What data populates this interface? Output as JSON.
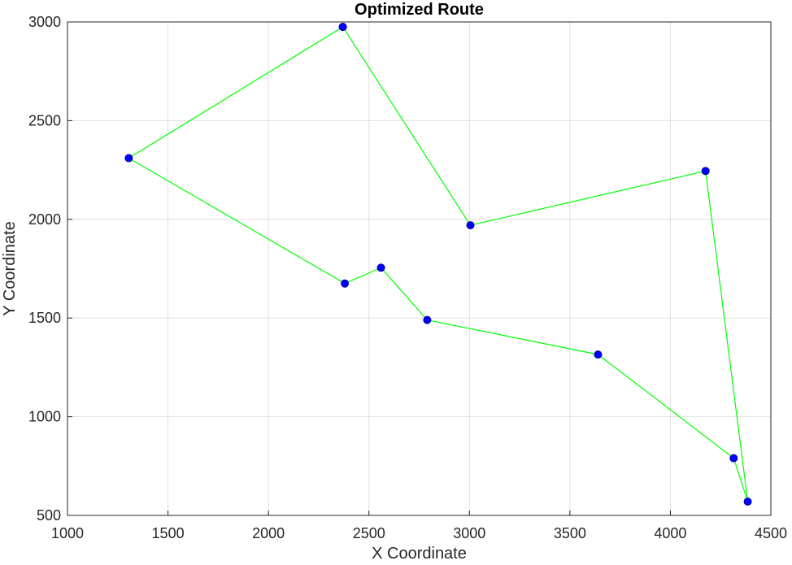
{
  "chart_data": {
    "type": "line",
    "title": "Optimized Route",
    "xlabel": "X Coordinate",
    "ylabel": "Y Coordinate",
    "xlim": [
      1000,
      4500
    ],
    "ylim": [
      500,
      3000
    ],
    "xticks": [
      1000,
      1500,
      2000,
      2500,
      3000,
      3500,
      4000,
      4500
    ],
    "yticks": [
      500,
      1000,
      1500,
      2000,
      2500,
      3000
    ],
    "grid": true,
    "line_color": "#00ff00",
    "marker_color": "#0000ff",
    "route": {
      "x": [
        2370,
        3005,
        4175,
        4385,
        4315,
        3640,
        2790,
        2560,
        2380,
        1305,
        2370
      ],
      "y": [
        2975,
        1970,
        2245,
        570,
        790,
        1315,
        1490,
        1755,
        1675,
        2310,
        2975
      ]
    }
  }
}
